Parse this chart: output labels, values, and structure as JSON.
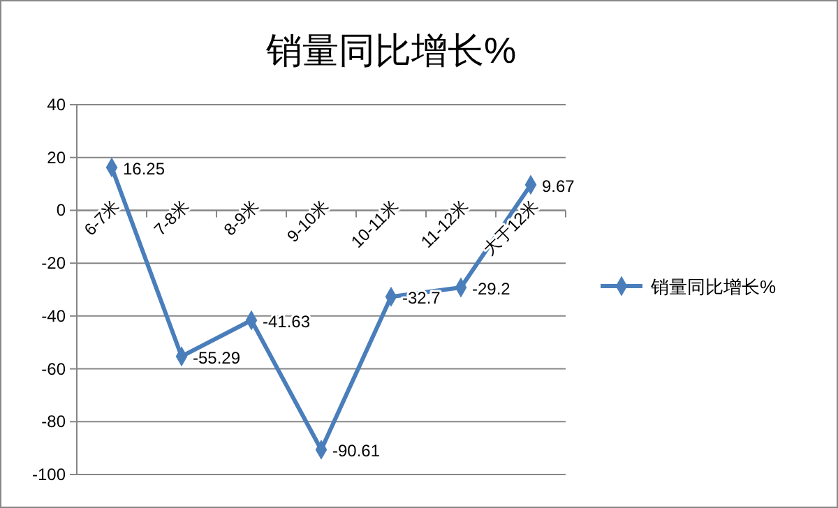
{
  "chart_data": {
    "type": "line",
    "title": "销量同比增长%",
    "categories": [
      "6-7米",
      "7-8米",
      "8-9米",
      "9-10米",
      "10-11米",
      "11-12米",
      "大于12米"
    ],
    "series": [
      {
        "name": "销量同比增长%",
        "color": "#4a7ebb",
        "values": [
          16.25,
          -55.29,
          -41.63,
          -90.61,
          -32.7,
          -29.2,
          9.67
        ]
      }
    ],
    "ylim": [
      -100,
      40
    ],
    "yticks": [
      -100,
      -80,
      -60,
      -40,
      -20,
      0,
      20,
      40
    ],
    "grid": "y",
    "legend": "right",
    "marker": "diamond",
    "data_labels": true
  }
}
